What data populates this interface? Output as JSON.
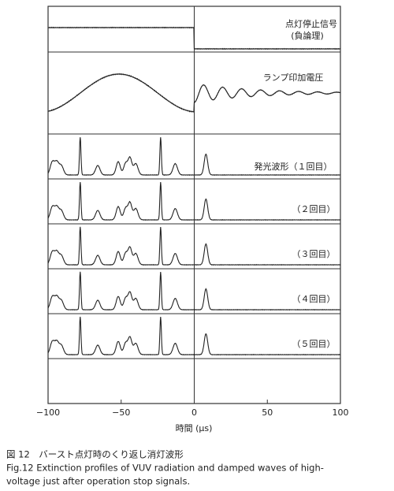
{
  "figure": {
    "xlim": [
      -100,
      100
    ],
    "xticks": [
      {
        "value": -100,
        "label": "−100"
      },
      {
        "value": -50,
        "label": "−50"
      },
      0,
      50,
      100
    ],
    "xlabel": "時間 (μs)",
    "trace_labels": {
      "signal": [
        "点灯停止信号",
        "(負論理)"
      ],
      "voltage": "ランプ印加電圧",
      "emission": [
        "発光波形（１回目）",
        "（２回目）",
        "（３回目）",
        "（４回目）",
        "（５回目）"
      ]
    },
    "caption": [
      "図 12　バースト点灯時のくり返し消灯波形",
      "Fig.12  Extinction profiles of VUV radiation and damped waves of high-",
      "voltage just after operation stop signals."
    ]
  }
}
